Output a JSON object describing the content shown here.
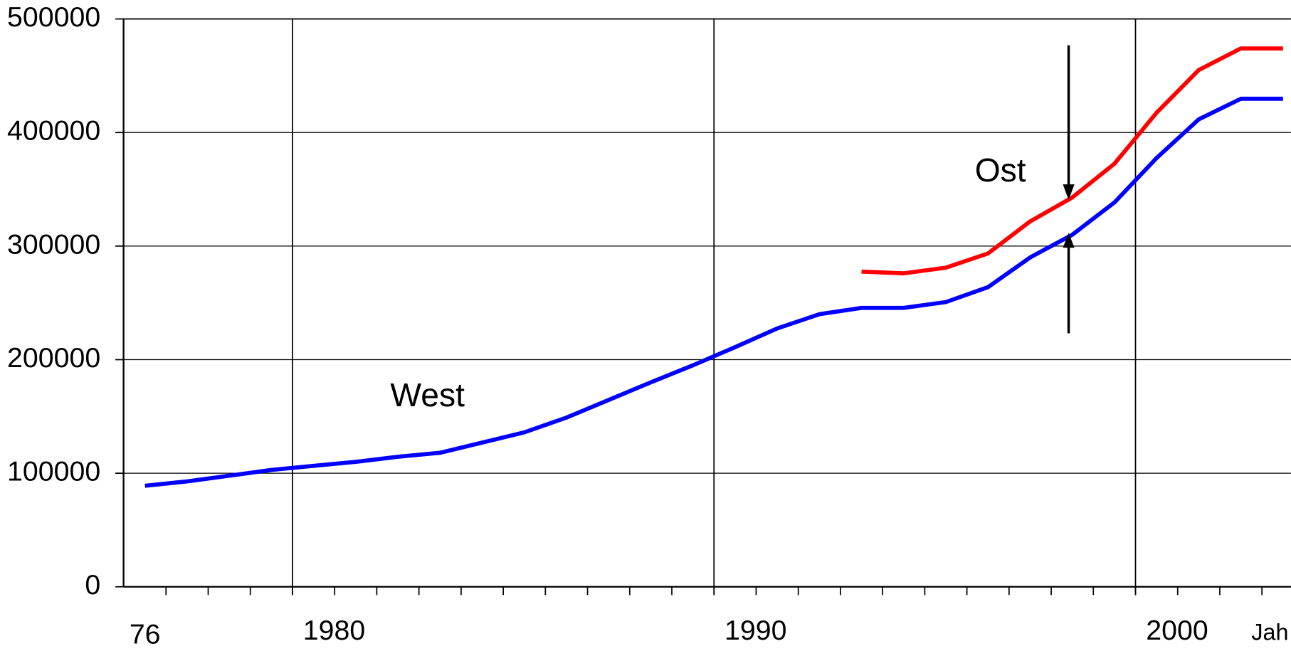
{
  "chart_data": {
    "type": "line",
    "categories": [
      "76",
      null,
      null,
      null,
      "1980",
      null,
      null,
      null,
      null,
      null,
      null,
      null,
      null,
      null,
      "1990",
      null,
      null,
      null,
      null,
      null,
      null,
      null,
      null,
      null,
      "2000",
      null,
      null,
      null
    ],
    "series": [
      {
        "color": "#0000ff",
        "values": [
          89000,
          92800,
          97800,
          102900,
          106500,
          110000,
          114500,
          118000,
          127000,
          136000,
          149000,
          164500,
          180000,
          195000,
          211000,
          227500,
          240000,
          245600,
          245600,
          250700,
          263800,
          290000,
          310000,
          338400,
          377500,
          411600,
          429700,
          429700
        ]
      },
      {
        "color": "#ff0000",
        "values": [
          null,
          null,
          null,
          null,
          null,
          null,
          null,
          null,
          null,
          null,
          null,
          null,
          null,
          null,
          null,
          null,
          null,
          277500,
          276000,
          281000,
          293500,
          321700,
          342800,
          372500,
          417400,
          455000,
          474000,
          474000
        ]
      }
    ],
    "annotations": [
      {
        "text": "West"
      },
      {
        "text": "Ost"
      }
    ],
    "x_label": "Jah",
    "ylim": [
      0,
      500000
    ],
    "yticks": [
      0,
      100000,
      200000,
      300000,
      400000,
      500000
    ],
    "grid": true
  }
}
